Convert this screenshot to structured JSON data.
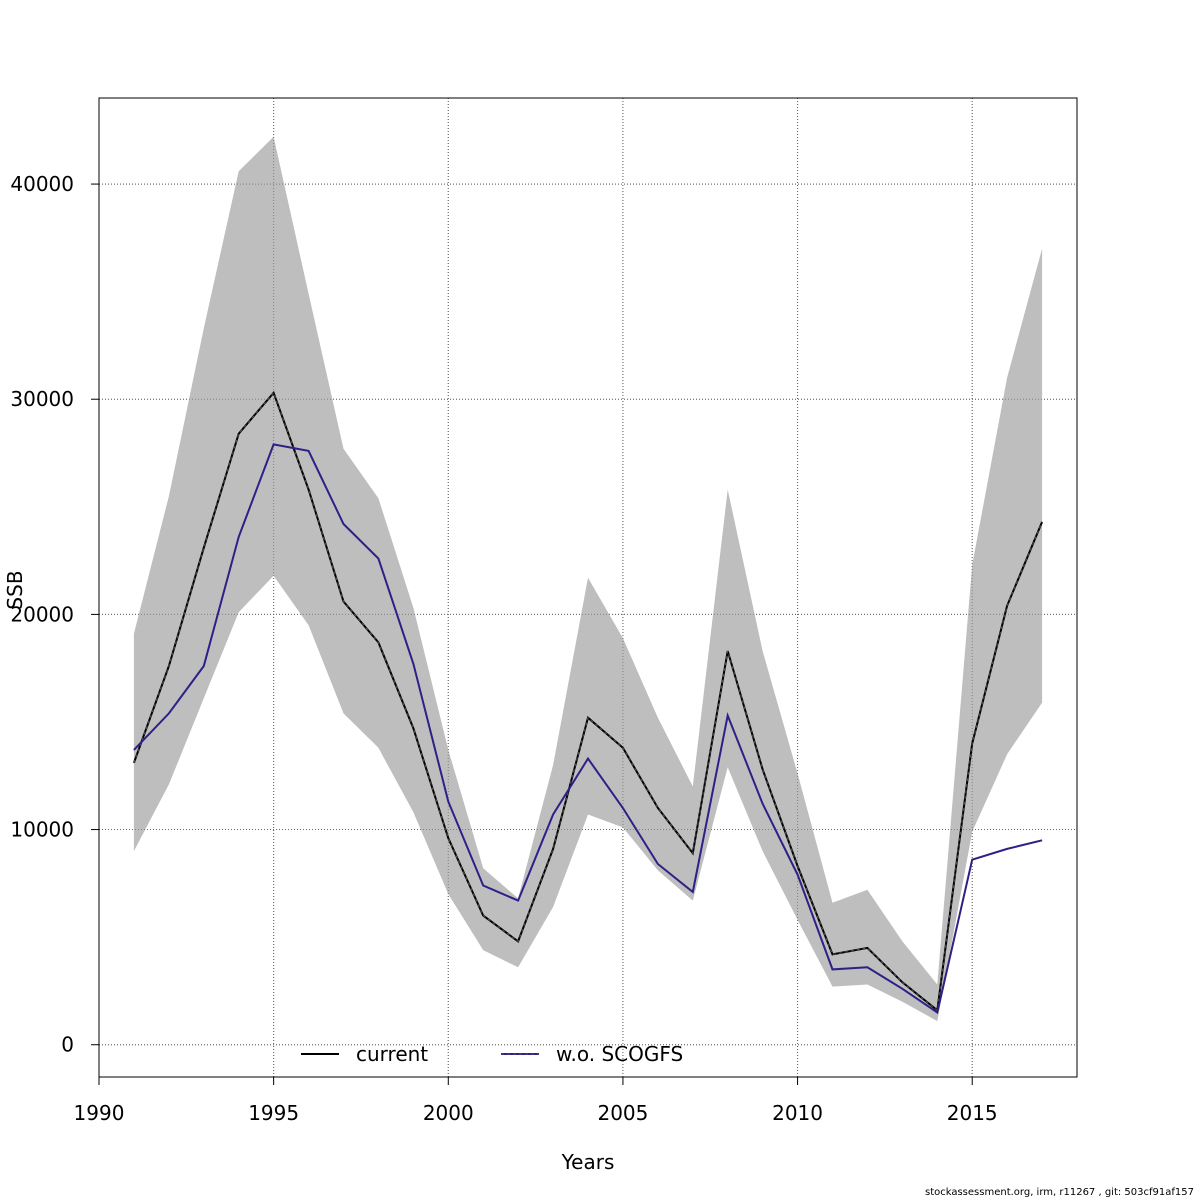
{
  "chart_data": {
    "type": "line",
    "title": "",
    "xlabel": "Years",
    "ylabel": "SSB",
    "xlim": [
      1990,
      2018
    ],
    "ylim": [
      -1500,
      44000
    ],
    "x_ticks": [
      1990,
      1995,
      2000,
      2005,
      2010,
      2015
    ],
    "y_ticks": [
      0,
      10000,
      20000,
      30000,
      40000
    ],
    "grid": true,
    "legend_position": "bottom",
    "colors": {
      "current": "#000000",
      "wo_scogfs": "#2b2187",
      "band": "#bebebe",
      "axis": "#000000",
      "grid": "#666666"
    },
    "x": [
      1991,
      1992,
      1993,
      1994,
      1995,
      1996,
      1997,
      1998,
      1999,
      2000,
      2001,
      2002,
      2003,
      2004,
      2005,
      2006,
      2007,
      2008,
      2009,
      2010,
      2011,
      2012,
      2013,
      2014,
      2015,
      2016,
      2017
    ],
    "series": [
      {
        "name": "current",
        "key": "current",
        "values": [
          13100,
          17600,
          23100,
          28400,
          30300,
          25800,
          20600,
          18700,
          14700,
          9600,
          6000,
          4800,
          9100,
          15200,
          13800,
          11000,
          8900,
          18300,
          12800,
          8300,
          4200,
          4500,
          2900,
          1600,
          14000,
          20400,
          24300
        ],
        "band_lower": [
          9000,
          12100,
          16100,
          20100,
          21800,
          19500,
          15400,
          13800,
          10800,
          7000,
          4400,
          3600,
          6400,
          10700,
          10100,
          8100,
          6700,
          12900,
          9000,
          5800,
          2700,
          2800,
          2000,
          1100,
          9900,
          13500,
          15900
        ],
        "band_upper": [
          19100,
          25500,
          33300,
          40600,
          42200,
          34900,
          27700,
          25400,
          20300,
          13700,
          8200,
          6800,
          13000,
          21700,
          18900,
          15200,
          12000,
          25800,
          18300,
          12600,
          6600,
          7200,
          4800,
          2800,
          22300,
          31000,
          37000
        ]
      },
      {
        "name": "w.o. SCOGFS",
        "key": "wo_scogfs",
        "values": [
          13700,
          15400,
          17600,
          23600,
          27900,
          27600,
          24200,
          22600,
          17700,
          11300,
          7400,
          6700,
          10700,
          13300,
          11000,
          8400,
          7100,
          15300,
          11200,
          7900,
          3500,
          3600,
          2600,
          1500,
          8600,
          9100,
          9500
        ]
      }
    ]
  },
  "legend": {
    "current_label": "current",
    "wo_label": "w.o. SCOGFS"
  },
  "footer": {
    "text": "stockassessment.org, irm, r11267 , git: 503cf91af157"
  }
}
